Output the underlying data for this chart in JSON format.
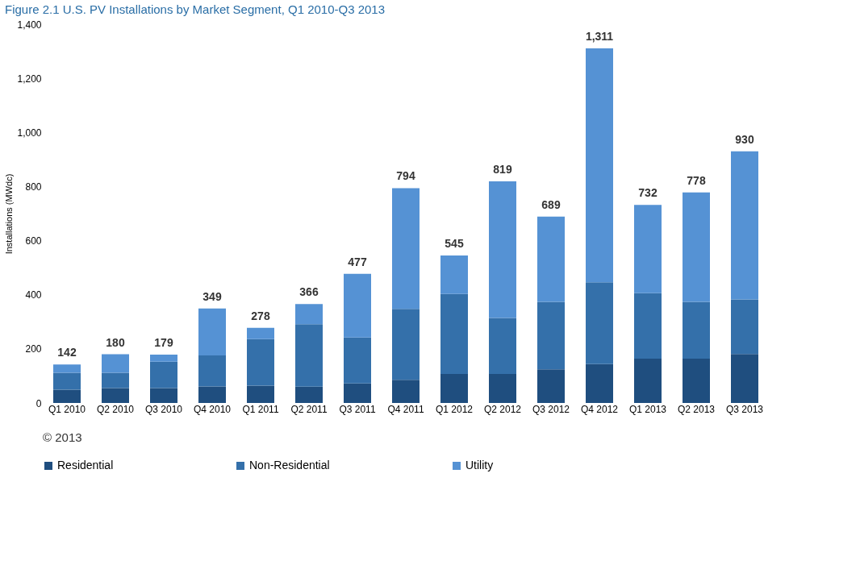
{
  "chart_data": {
    "type": "bar",
    "title": "Figure 2.1 U.S. PV Installations by Market Segment, Q1 2010-Q3 2013",
    "ylabel": "Installations (MWdc)",
    "stacked": true,
    "categories": [
      "Q1 2010",
      "Q2 2010",
      "Q3 2010",
      "Q4 2010",
      "Q1 2011",
      "Q2 2011",
      "Q3 2011",
      "Q4 2011",
      "Q1 2012",
      "Q2 2012",
      "Q3 2012",
      "Q4 2012",
      "Q1 2013",
      "Q2 2013",
      "Q3 2013"
    ],
    "series": [
      {
        "name": "Residential",
        "color": "#1f4e7f",
        "values": [
          49,
          55,
          55,
          61,
          64,
          60,
          72,
          86,
          107,
          107,
          124,
          144,
          164,
          164,
          181
        ]
      },
      {
        "name": "Non-Residential",
        "color": "#3470aa",
        "values": [
          63,
          57,
          98,
          115,
          172,
          231,
          170,
          262,
          296,
          207,
          250,
          302,
          242,
          210,
          202
        ]
      },
      {
        "name": "Utility",
        "color": "#5592d4",
        "values": [
          30,
          68,
          26,
          173,
          42,
          75,
          235,
          446,
          142,
          505,
          315,
          865,
          326,
          404,
          547
        ]
      }
    ],
    "totals": [
      "142",
      "180",
      "179",
      "349",
      "278",
      "366",
      "477",
      "794",
      "545",
      "819",
      "689",
      "1,311",
      "732",
      "778",
      "930"
    ],
    "ylim": [
      0,
      1400
    ],
    "yticks": [
      0,
      {
        "value": 200,
        "label": "200"
      },
      {
        "value": 400,
        "label": "400"
      },
      {
        "value": 600,
        "label": "600"
      },
      {
        "value": 800,
        "label": "800"
      },
      {
        "value": 1000,
        "label": "1,000"
      },
      {
        "value": 1200,
        "label": "1,200"
      },
      {
        "value": 1400,
        "label": "1,400"
      }
    ],
    "legend": "bottom",
    "grid": false,
    "annotations": [
      "© 2013"
    ]
  }
}
